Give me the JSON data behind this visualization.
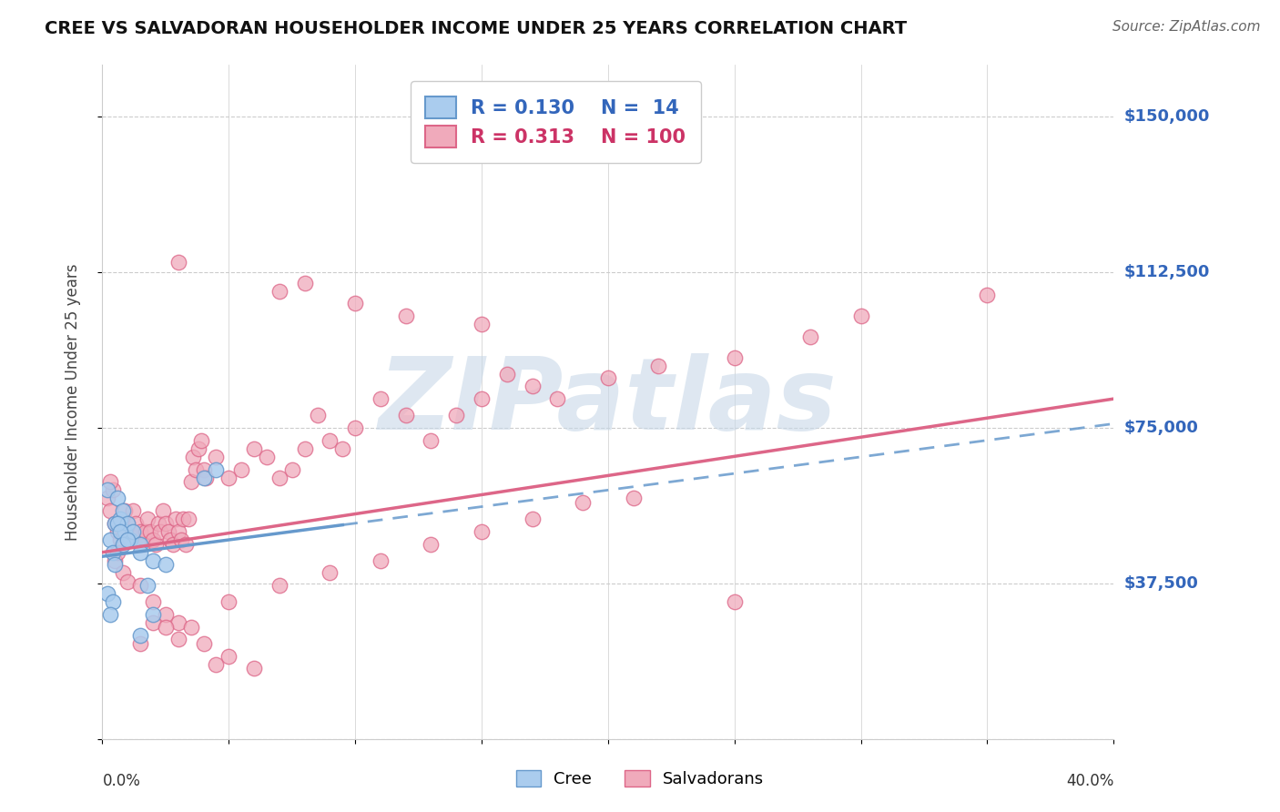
{
  "title": "CREE VS SALVADORAN HOUSEHOLDER INCOME UNDER 25 YEARS CORRELATION CHART",
  "source": "Source: ZipAtlas.com",
  "ylabel": "Householder Income Under 25 years",
  "xlim": [
    0.0,
    40.0
  ],
  "ylim": [
    0,
    162500
  ],
  "cree_R": 0.13,
  "cree_N": 14,
  "salvadoran_R": 0.313,
  "salvadoran_N": 100,
  "cree_line_color": "#6699cc",
  "cree_fill_color": "#aaccee",
  "salvadoran_line_color": "#dd6688",
  "salvadoran_fill_color": "#f0aabb",
  "grid_color": "#cccccc",
  "background_color": "#ffffff",
  "watermark_color": "#c8d8e8",
  "ytick_vals": [
    0,
    37500,
    75000,
    112500,
    150000
  ],
  "ytick_labels_right": [
    "$37,500",
    "$75,000",
    "$112,500",
    "$150,000"
  ],
  "cree_points_x": [
    0.2,
    0.5,
    0.6,
    0.7,
    0.8,
    0.9,
    1.0,
    1.1,
    1.2,
    1.5,
    0.3,
    0.4,
    0.5,
    0.6,
    0.7,
    0.8,
    1.0,
    1.5,
    2.0,
    2.5,
    0.2,
    0.4,
    1.8,
    4.0,
    4.5,
    2.0,
    1.5,
    0.3
  ],
  "cree_points_y": [
    60000,
    52000,
    58000,
    53000,
    55000,
    50000,
    52000,
    48000,
    50000,
    47000,
    48000,
    45000,
    42000,
    52000,
    50000,
    47000,
    48000,
    45000,
    43000,
    42000,
    35000,
    33000,
    37000,
    63000,
    65000,
    30000,
    25000,
    30000
  ],
  "salvadoran_points_x": [
    0.2,
    0.3,
    0.4,
    0.5,
    0.6,
    0.7,
    0.8,
    0.9,
    1.0,
    1.1,
    1.2,
    1.3,
    1.4,
    1.5,
    1.6,
    1.7,
    1.8,
    1.9,
    2.0,
    2.1,
    2.2,
    2.3,
    2.4,
    2.5,
    2.6,
    2.7,
    2.8,
    2.9,
    3.0,
    3.1,
    3.2,
    3.3,
    3.4,
    3.5,
    3.6,
    3.7,
    3.8,
    3.9,
    4.0,
    4.1,
    4.5,
    5.0,
    5.5,
    6.0,
    6.5,
    7.0,
    7.5,
    8.0,
    8.5,
    9.0,
    9.5,
    10.0,
    11.0,
    12.0,
    13.0,
    14.0,
    15.0,
    16.0,
    17.0,
    18.0,
    20.0,
    22.0,
    25.0,
    28.0,
    30.0,
    35.0,
    0.5,
    0.8,
    1.0,
    1.5,
    2.0,
    2.5,
    3.0,
    3.5,
    4.0,
    5.0,
    6.0,
    4.5,
    3.0,
    7.0,
    8.0,
    10.0,
    12.0,
    15.0,
    2.0,
    2.5,
    3.0,
    5.0,
    7.0,
    9.0,
    11.0,
    13.0,
    15.0,
    17.0,
    19.0,
    21.0,
    1.5,
    25.0,
    0.3,
    0.6
  ],
  "salvadoran_points_y": [
    58000,
    55000,
    60000,
    52000,
    50000,
    48000,
    52000,
    55000,
    52000,
    50000,
    55000,
    52000,
    48000,
    50000,
    47000,
    50000,
    53000,
    50000,
    48000,
    47000,
    52000,
    50000,
    55000,
    52000,
    50000,
    48000,
    47000,
    53000,
    50000,
    48000,
    53000,
    47000,
    53000,
    62000,
    68000,
    65000,
    70000,
    72000,
    65000,
    63000,
    68000,
    63000,
    65000,
    70000,
    68000,
    63000,
    65000,
    70000,
    78000,
    72000,
    70000,
    75000,
    82000,
    78000,
    72000,
    78000,
    82000,
    88000,
    85000,
    82000,
    87000,
    90000,
    92000,
    97000,
    102000,
    107000,
    43000,
    40000,
    38000,
    37000,
    33000,
    30000,
    28000,
    27000,
    23000,
    20000,
    17000,
    18000,
    115000,
    108000,
    110000,
    105000,
    102000,
    100000,
    28000,
    27000,
    24000,
    33000,
    37000,
    40000,
    43000,
    47000,
    50000,
    53000,
    57000,
    58000,
    23000,
    33000,
    62000,
    45000
  ],
  "salv_trend_x0": 0,
  "salv_trend_y0": 45000,
  "salv_trend_x1": 40,
  "salv_trend_y1": 82000,
  "cree_trend_x0": 0,
  "cree_trend_y0": 44000,
  "cree_trend_x1": 40,
  "cree_trend_y1": 76000,
  "cree_solid_end_x": 9.5
}
